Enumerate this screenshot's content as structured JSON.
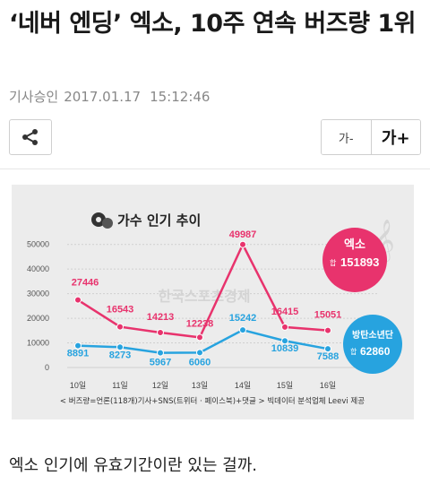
{
  "article": {
    "title": "‘네버 엔딩’ 엑소, 10주 연속 버즈량 1위",
    "approved_label": "기사승인",
    "date": "2017.01.17",
    "time": "15:12:46",
    "body_text": "엑소 인기에 유효기간이란 있는 걸까."
  },
  "toolbar": {
    "share_icon": "share-icon",
    "font_small_label": "가-",
    "font_large_label": "가+"
  },
  "chart_data": {
    "type": "line",
    "title": "가수 인기 추이",
    "categories": [
      "10일",
      "11일",
      "12일",
      "13일",
      "14일",
      "15일",
      "16일"
    ],
    "ylim": [
      0,
      55000
    ],
    "yticks": [
      "50000",
      "40000",
      "30000",
      "20000",
      "10000",
      "0"
    ],
    "grid": true,
    "series": [
      {
        "name": "엑소",
        "total_label": "합",
        "total": "151893",
        "color": "#e8336d",
        "values": [
          27446,
          16543,
          14213,
          12238,
          49987,
          16415,
          15051
        ]
      },
      {
        "name": "방탄소년단",
        "total_label": "합",
        "total": "62860",
        "color": "#27a3df",
        "values": [
          8891,
          8273,
          5967,
          6060,
          15242,
          10839,
          7588
        ]
      }
    ],
    "watermark": "한국스포츠경제",
    "footnote": "< 버즈량=언론(118개)기사+SNS(트위터 · 페이스북)+댓글 > 빅데이터 분석업체 Leevi 제공"
  }
}
